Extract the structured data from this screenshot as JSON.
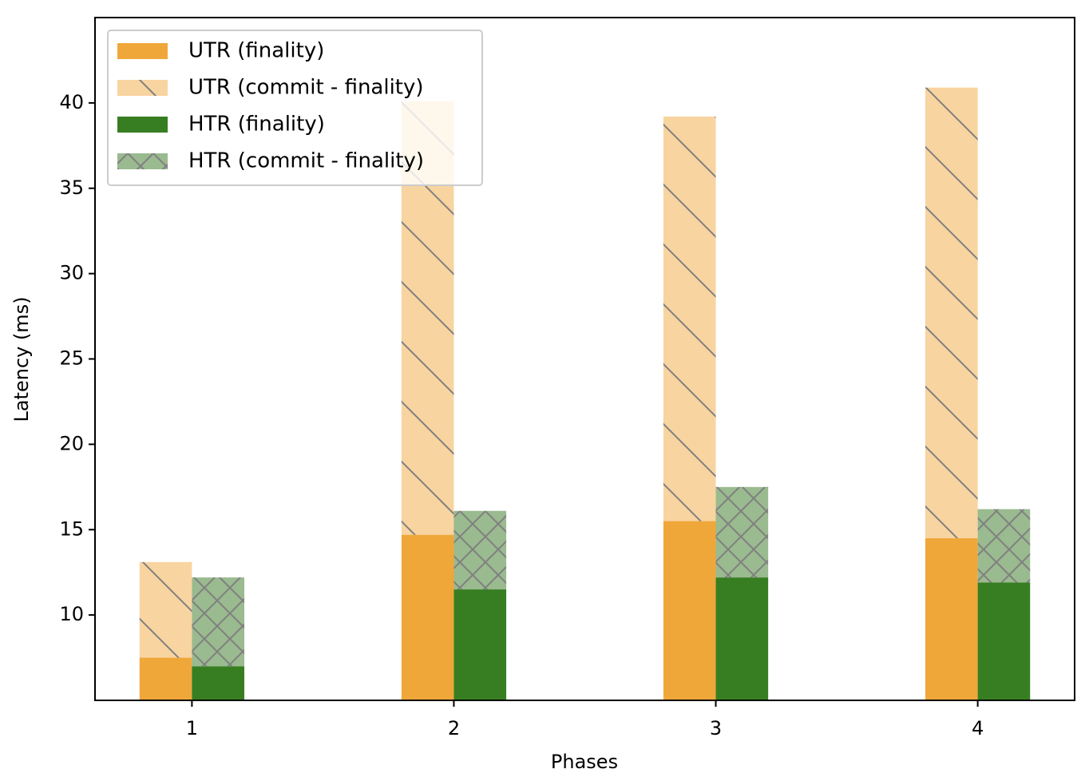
{
  "chart_data": {
    "type": "bar",
    "x_label": "Phases",
    "y_label": "Latency (ms)",
    "x": [
      1,
      2,
      3,
      4
    ],
    "xlim": [
      0.63,
      4.37
    ],
    "xticks": [
      1,
      2,
      3,
      4
    ],
    "ylim": [
      5,
      45
    ],
    "yticks": [
      10,
      15,
      20,
      25,
      30,
      35,
      40
    ],
    "bar_width": 0.2,
    "legend": "upper left",
    "series": [
      {
        "name": "UTR (finality)",
        "color": "#f0a73a",
        "stack": "UTR",
        "offset": -0.1,
        "values": [
          7.5,
          14.7,
          15.5,
          14.5
        ]
      },
      {
        "name": "UTR (commit - finality)",
        "color": "#f8d4a0",
        "hatch": "\\",
        "stack": "UTR",
        "offset": -0.1,
        "values": [
          5.6,
          25.4,
          23.7,
          26.4
        ]
      },
      {
        "name": "HTR (finality)",
        "color": "#377e22",
        "stack": "HTR",
        "offset": 0.1,
        "values": [
          7.0,
          11.5,
          12.2,
          11.9
        ]
      },
      {
        "name": "HTR (commit - finality)",
        "color": "#9aba8f",
        "hatch": "x",
        "stack": "HTR",
        "offset": 0.1,
        "values": [
          5.2,
          4.6,
          5.3,
          4.3
        ]
      }
    ]
  }
}
